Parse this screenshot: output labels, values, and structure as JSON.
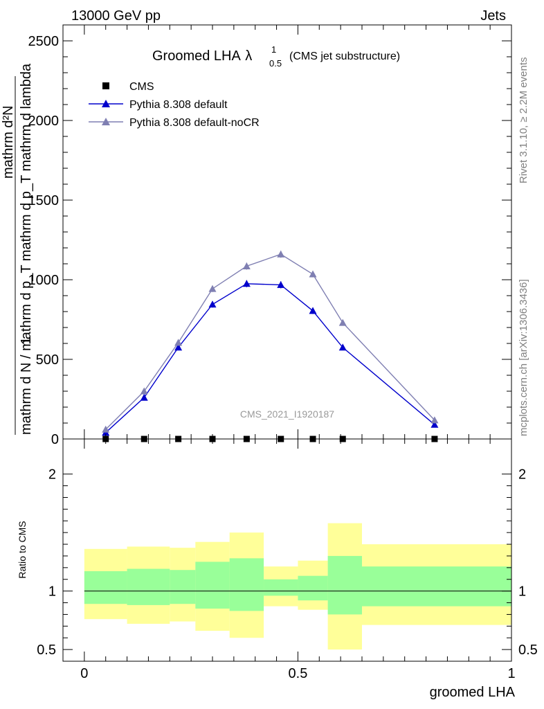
{
  "header": {
    "left": "13000 GeV pp",
    "right": "Jets"
  },
  "side_labels": {
    "rivet": "Rivet 3.1.10, ≥ 2.2M events",
    "mcplots": "mcplots.cern.ch [arXiv:1306.3436]"
  },
  "watermark": "CMS_2021_I1920187",
  "chart_data": [
    {
      "type": "line",
      "title": "Groomed LHA",
      "title_symbol": "λ",
      "title_superscript": "1",
      "title_subscript": "0.5",
      "title_suffix": "(CMS jet substructure)",
      "xlabel": "groomed LHA",
      "ylabel": {
        "numerator_one": "1",
        "numerator": "mathrm d²N",
        "denominator": "mathrm d N / mathrm d p_T mathrm d p_T mathrm d lambda",
        "tail": "mathrm d lambda"
      },
      "xlim": [
        -0.05,
        1.0
      ],
      "ylim": [
        0,
        2600
      ],
      "yticks": [
        "0",
        "500",
        "1000",
        "1500",
        "2000",
        "2500"
      ],
      "ytick_values": [
        0,
        500,
        1000,
        1500,
        2000,
        2500
      ],
      "xticks": [
        "0",
        "0.5",
        "1"
      ],
      "xtick_values": [
        0,
        0.5,
        1
      ],
      "bin_edges": [
        0,
        0.1,
        0.2,
        0.26,
        0.34,
        0.42,
        0.5,
        0.57,
        0.65,
        1.0
      ],
      "bin_centers": [
        0.05,
        0.14,
        0.22,
        0.3,
        0.38,
        0.46,
        0.535,
        0.605,
        0.82
      ],
      "legend_position": "top-left",
      "series": [
        {
          "name": "CMS",
          "marker": "square",
          "color": "#000000",
          "x": [
            0.05,
            0.14,
            0.22,
            0.3,
            0.38,
            0.46,
            0.535,
            0.605,
            0.82
          ],
          "values": [
            0,
            0,
            0,
            0,
            0,
            0,
            0,
            0,
            0
          ]
        },
        {
          "name": "Pythia 8.308 default",
          "marker": "triangle",
          "color": "#0000cc",
          "x": [
            0.05,
            0.14,
            0.22,
            0.3,
            0.38,
            0.46,
            0.535,
            0.605,
            0.82
          ],
          "values": [
            40,
            260,
            575,
            845,
            975,
            968,
            805,
            575,
            90
          ],
          "errors": [
            6,
            14,
            18,
            20,
            22,
            22,
            20,
            18,
            8
          ]
        },
        {
          "name": "Pythia 8.308 default-noCR",
          "marker": "triangle",
          "color": "#7f7fb2",
          "x": [
            0.05,
            0.14,
            0.22,
            0.3,
            0.38,
            0.46,
            0.535,
            0.605,
            0.82
          ],
          "values": [
            60,
            300,
            605,
            943,
            1085,
            1160,
            1035,
            730,
            118
          ],
          "errors": [
            6,
            14,
            18,
            20,
            22,
            22,
            20,
            18,
            8
          ]
        }
      ]
    },
    {
      "type": "area",
      "ylabel": "Ratio to CMS",
      "xlabel": "groomed LHA",
      "xlim": [
        -0.05,
        1.0
      ],
      "ylim": [
        0.4,
        2.3
      ],
      "yticks": [
        "0.5",
        "1",
        "2"
      ],
      "ytick_values": [
        0.5,
        1,
        2
      ],
      "reference_line": 1,
      "bin_edges": [
        0,
        0.1,
        0.2,
        0.26,
        0.34,
        0.42,
        0.5,
        0.57,
        0.65,
        1.0
      ],
      "bands": [
        {
          "name": "2 sigma",
          "color": "#ffff99",
          "lower": [
            0.76,
            0.72,
            0.74,
            0.66,
            0.6,
            0.87,
            0.84,
            0.5,
            0.71
          ],
          "upper": [
            1.36,
            1.38,
            1.37,
            1.42,
            1.5,
            1.21,
            1.26,
            1.58,
            1.4
          ]
        },
        {
          "name": "1 sigma",
          "color": "#99ff99",
          "lower": [
            0.89,
            0.88,
            0.89,
            0.85,
            0.83,
            0.96,
            0.92,
            0.8,
            0.87
          ],
          "upper": [
            1.17,
            1.19,
            1.18,
            1.25,
            1.28,
            1.1,
            1.13,
            1.3,
            1.21
          ]
        }
      ]
    }
  ]
}
